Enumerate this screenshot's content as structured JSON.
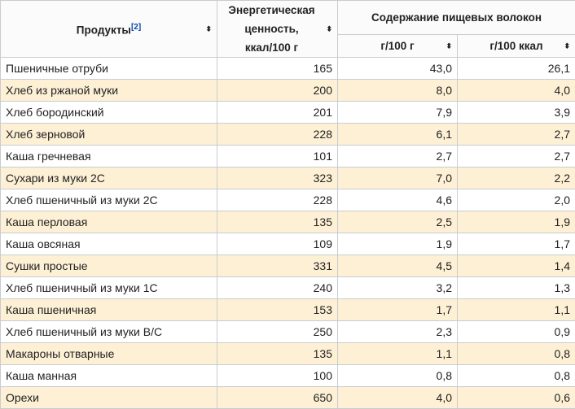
{
  "header": {
    "products": "Продукты",
    "products_ref": "[2]",
    "energy": "Энергетическая ценность, ккал/100 г",
    "fiber": "Содержание пищевых волокон",
    "per100g": "г/100 г",
    "per100kcal": "г/100 ккал",
    "sort_icon": "⬍"
  },
  "colors": {
    "highlight": "#fdf0d5"
  },
  "rows": [
    {
      "name": "Пшеничные отруби",
      "kcal": "165",
      "g100g": "43,0",
      "g100kcal": "26,1",
      "hl": false
    },
    {
      "name": "Хлеб из ржаной муки",
      "kcal": "200",
      "g100g": "8,0",
      "g100kcal": "4,0",
      "hl": true
    },
    {
      "name": "Хлеб бородинский",
      "kcal": "201",
      "g100g": "7,9",
      "g100kcal": "3,9",
      "hl": false
    },
    {
      "name": "Хлеб зерновой",
      "kcal": "228",
      "g100g": "6,1",
      "g100kcal": "2,7",
      "hl": true
    },
    {
      "name": "Каша гречневая",
      "kcal": "101",
      "g100g": "2,7",
      "g100kcal": "2,7",
      "hl": false
    },
    {
      "name": "Сухари из муки 2С",
      "kcal": "323",
      "g100g": "7,0",
      "g100kcal": "2,2",
      "hl": true
    },
    {
      "name": "Хлеб пшеничный из муки 2С",
      "kcal": "228",
      "g100g": "4,6",
      "g100kcal": "2,0",
      "hl": false
    },
    {
      "name": "Каша перловая",
      "kcal": "135",
      "g100g": "2,5",
      "g100kcal": "1,9",
      "hl": true
    },
    {
      "name": "Каша овсяная",
      "kcal": "109",
      "g100g": "1,9",
      "g100kcal": "1,7",
      "hl": false
    },
    {
      "name": "Сушки простые",
      "kcal": "331",
      "g100g": "4,5",
      "g100kcal": "1,4",
      "hl": true
    },
    {
      "name": "Хлеб пшеничный из муки 1С",
      "kcal": "240",
      "g100g": "3,2",
      "g100kcal": "1,3",
      "hl": false
    },
    {
      "name": "Каша пшеничная",
      "kcal": "153",
      "g100g": "1,7",
      "g100kcal": "1,1",
      "hl": true
    },
    {
      "name": "Хлеб пшеничный из муки В/С",
      "kcal": "250",
      "g100g": "2,3",
      "g100kcal": "0,9",
      "hl": false
    },
    {
      "name": "Макароны отварные",
      "kcal": "135",
      "g100g": "1,1",
      "g100kcal": "0,8",
      "hl": true
    },
    {
      "name": "Каша манная",
      "kcal": "100",
      "g100g": "0,8",
      "g100kcal": "0,8",
      "hl": false
    },
    {
      "name": "Орехи",
      "kcal": "650",
      "g100g": "4,0",
      "g100kcal": "0,6",
      "hl": true
    }
  ]
}
